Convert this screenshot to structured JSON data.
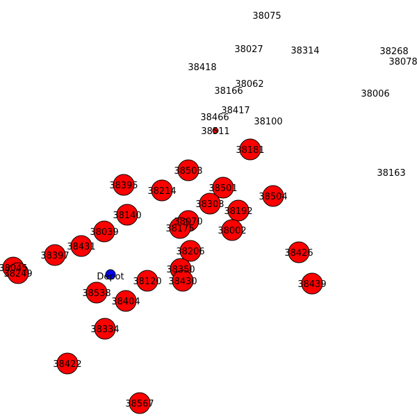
{
  "diagram": {
    "node_fill": "#ff0000",
    "node_stroke": "#000000",
    "depot_fill": "#0000ff",
    "depot": {
      "label": "Depot"
    },
    "nodes": [
      {
        "id": "38075"
      },
      {
        "id": "38027"
      },
      {
        "id": "38314"
      },
      {
        "id": "38268"
      },
      {
        "id": "38078"
      },
      {
        "id": "38418"
      },
      {
        "id": "38062"
      },
      {
        "id": "38166"
      },
      {
        "id": "38006"
      },
      {
        "id": "38417"
      },
      {
        "id": "38466"
      },
      {
        "id": "38100"
      },
      {
        "id": "38511"
      },
      {
        "id": "38181"
      },
      {
        "id": "38503"
      },
      {
        "id": "38163"
      },
      {
        "id": "38395"
      },
      {
        "id": "38214"
      },
      {
        "id": "38501"
      },
      {
        "id": "38504"
      },
      {
        "id": "38303"
      },
      {
        "id": "38140"
      },
      {
        "id": "38192"
      },
      {
        "id": "38070"
      },
      {
        "id": "38039"
      },
      {
        "id": "38175"
      },
      {
        "id": "38002"
      },
      {
        "id": "38431"
      },
      {
        "id": "38397"
      },
      {
        "id": "38206"
      },
      {
        "id": "38426"
      },
      {
        "id": "38045"
      },
      {
        "id": "38249"
      },
      {
        "id": "38350"
      },
      {
        "id": "38120"
      },
      {
        "id": "38430"
      },
      {
        "id": "38439"
      },
      {
        "id": "38538"
      },
      {
        "id": "38404"
      },
      {
        "id": "38334"
      },
      {
        "id": "38422"
      },
      {
        "id": "38567"
      }
    ]
  }
}
